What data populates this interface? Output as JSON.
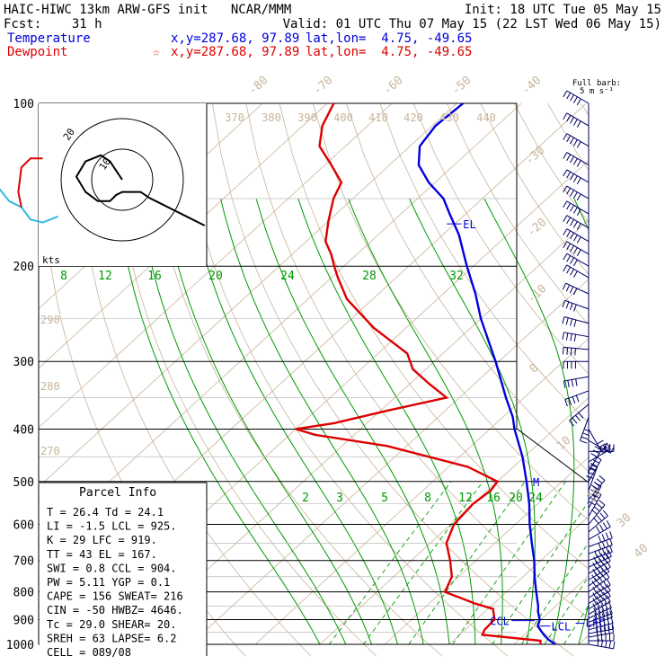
{
  "header": {
    "line1_left": "HAIC-HIWC 13km ARW-GFS init   NCAR/MMM",
    "line1_right": "Init: 18 UTC Tue 05 May 15",
    "line2_left": "Fcst:    31 h",
    "line2_right": "Valid: 01 UTC Thu 07 May 15 (22 LST Wed 06 May 15)",
    "temp_label": "Temperature",
    "temp_xy": "x,y=287.68, 97.89",
    "temp_latlon": "lat,lon=  4.75, -49.65",
    "dew_label": "Dewpoint",
    "dew_xy": "x,y=287.68, 97.89",
    "dew_latlon": "lat,lon=  4.75, -49.65",
    "star_glyph": "☆"
  },
  "colors": {
    "temperature": "#0000dd",
    "dewpoint": "#dd0000",
    "isotherm": "#c8b49a",
    "mixing_ratio": "#009900",
    "theta_label": "#c8b49a",
    "barb": "#000066",
    "hodo_cyan": "#33bbdd"
  },
  "barb_header": {
    "line1": "Full barb:",
    "line2": "5 m s⁻¹"
  },
  "parcel_info": {
    "title": "Parcel Info",
    "rows": [
      "T  =  26.4  Td =  24.1",
      "LI =  -1.5  LCL =  925.",
      "K  =    29  LFC =  919.",
      "TT =    43  EL  =  167.",
      "SWI =   0.8  CCL =  904.",
      "PW =  5.11  YGP =   0.1",
      "CAPE =  156  SWEAT= 216",
      "CIN =   -50  HWBZ= 4646.",
      "Tc =  29.0  SHEAR=  20.",
      "SREH =   63  LAPSE=  6.2",
      "CELL = 089/08"
    ]
  },
  "chart_data": {
    "type": "line",
    "chart_kind": "skew-T log-p sounding",
    "y_axis": {
      "label": "",
      "unit": "hPa",
      "log_scale": true,
      "range": [
        1000,
        100
      ],
      "ticks": [
        "100",
        "200",
        "300",
        "400",
        "500",
        "600",
        "700",
        "800",
        "900",
        "1000"
      ]
    },
    "isotherm_labels": [
      "-80",
      "-70",
      "-60",
      "-50",
      "-40",
      "-30",
      "-20",
      "-10",
      "0",
      "10",
      "20",
      "30",
      "40"
    ],
    "theta_e_labels": [
      "370",
      "380",
      "390",
      "400",
      "410",
      "420",
      "430",
      "440"
    ],
    "theta_side_labels": [
      "290",
      "280",
      "270"
    ],
    "mixing_ratio_labels_top": [
      "8",
      "12",
      "16",
      "20",
      "24",
      "28",
      "32"
    ],
    "mixing_ratio_labels_mid": [
      "2",
      "3",
      "5",
      "8",
      "12",
      "16",
      "20",
      "24"
    ],
    "annotations": {
      "el": "EL",
      "m": "M",
      "ccl": "CCL",
      "lcl": "LCL",
      "lfc": "LFC"
    },
    "series": [
      {
        "name": "Temperature",
        "points": [
          [
            1000,
            26.4
          ],
          [
            980,
            24.5
          ],
          [
            960,
            23.0
          ],
          [
            940,
            21.6
          ],
          [
            925,
            20.6
          ],
          [
            900,
            19.8
          ],
          [
            870,
            18.2
          ],
          [
            850,
            17.3
          ],
          [
            800,
            14.6
          ],
          [
            750,
            11.8
          ],
          [
            700,
            9.0
          ],
          [
            650,
            5.7
          ],
          [
            600,
            2.2
          ],
          [
            550,
            -1.3
          ],
          [
            500,
            -5.5
          ],
          [
            450,
            -10.3
          ],
          [
            400,
            -16.2
          ],
          [
            380,
            -18.5
          ],
          [
            350,
            -22.8
          ],
          [
            300,
            -30.5
          ],
          [
            250,
            -40.0
          ],
          [
            225,
            -45.0
          ],
          [
            200,
            -51.0
          ],
          [
            175,
            -57.5
          ],
          [
            160,
            -62.5
          ],
          [
            150,
            -66.0
          ],
          [
            140,
            -71.0
          ],
          [
            130,
            -75.5
          ],
          [
            120,
            -78.5
          ],
          [
            110,
            -79.5
          ],
          [
            100,
            -79.0
          ]
        ]
      },
      {
        "name": "Dewpoint",
        "points": [
          [
            1000,
            24.1
          ],
          [
            985,
            23.5
          ],
          [
            960,
            13.5
          ],
          [
            940,
            13.0
          ],
          [
            900,
            12.8
          ],
          [
            860,
            10.8
          ],
          [
            840,
            7.0
          ],
          [
            800,
            0.5
          ],
          [
            750,
            -1.0
          ],
          [
            700,
            -4.0
          ],
          [
            650,
            -7.5
          ],
          [
            600,
            -9.5
          ],
          [
            550,
            -10.0
          ],
          [
            520,
            -9.5
          ],
          [
            500,
            -10.0
          ],
          [
            470,
            -17.0
          ],
          [
            430,
            -33.0
          ],
          [
            410,
            -46.0
          ],
          [
            400,
            -50.0
          ],
          [
            390,
            -45.0
          ],
          [
            370,
            -39.0
          ],
          [
            350,
            -32.0
          ],
          [
            330,
            -37.0
          ],
          [
            310,
            -42.0
          ],
          [
            290,
            -45.5
          ],
          [
            260,
            -55.0
          ],
          [
            230,
            -64.0
          ],
          [
            210,
            -69.0
          ],
          [
            200,
            -71.5
          ],
          [
            190,
            -74.0
          ],
          [
            180,
            -77.0
          ],
          [
            165,
            -80.0
          ],
          [
            150,
            -83.0
          ],
          [
            140,
            -84.5
          ],
          [
            130,
            -89.0
          ],
          [
            120,
            -94.0
          ],
          [
            110,
            -97.0
          ],
          [
            100,
            -99.0
          ]
        ]
      }
    ],
    "hodograph": {
      "speed_labels": [
        "10",
        "20"
      ],
      "unit_label": "kts",
      "black_path": [
        [
          0,
          0
        ],
        [
          -2,
          -3
        ],
        [
          -4,
          -6
        ],
        [
          -7,
          -8
        ],
        [
          -12,
          -6
        ],
        [
          -15,
          -1
        ],
        [
          -12,
          4
        ],
        [
          -8,
          7
        ],
        [
          -4,
          7
        ],
        [
          -2,
          5
        ],
        [
          0,
          4
        ],
        [
          2,
          4
        ],
        [
          4,
          4
        ],
        [
          6,
          4
        ],
        [
          9,
          6
        ],
        [
          13,
          8
        ],
        [
          17,
          10
        ],
        [
          21,
          12
        ],
        [
          25,
          14
        ],
        [
          27,
          15
        ]
      ],
      "cyan_path": [
        [
          -21,
          12
        ],
        [
          -26,
          14
        ],
        [
          -30,
          13
        ],
        [
          -33,
          9
        ],
        [
          -37,
          7
        ],
        [
          -41,
          2
        ]
      ],
      "red_path": [
        [
          -33,
          9
        ],
        [
          -34,
          4
        ],
        [
          -33,
          -4
        ],
        [
          -30,
          -7
        ],
        [
          -26,
          -7
        ]
      ]
    },
    "wind_barbs": [
      {
        "p": 1000,
        "dir": 100,
        "spd": 7
      },
      {
        "p": 985,
        "dir": 90,
        "spd": 8
      },
      {
        "p": 970,
        "dir": 80,
        "spd": 9
      },
      {
        "p": 955,
        "dir": 80,
        "spd": 9
      },
      {
        "p": 940,
        "dir": 75,
        "spd": 8
      },
      {
        "p": 925,
        "dir": 70,
        "spd": 8
      },
      {
        "p": 910,
        "dir": 70,
        "spd": 7
      },
      {
        "p": 895,
        "dir": 65,
        "spd": 7
      },
      {
        "p": 880,
        "dir": 60,
        "spd": 6
      },
      {
        "p": 860,
        "dir": 60,
        "spd": 6
      },
      {
        "p": 840,
        "dir": 60,
        "spd": 5
      },
      {
        "p": 820,
        "dir": 60,
        "spd": 5
      },
      {
        "p": 800,
        "dir": 55,
        "spd": 5
      },
      {
        "p": 780,
        "dir": 55,
        "spd": 5
      },
      {
        "p": 760,
        "dir": 60,
        "spd": 5
      },
      {
        "p": 740,
        "dir": 60,
        "spd": 5
      },
      {
        "p": 720,
        "dir": 65,
        "spd": 5
      },
      {
        "p": 700,
        "dir": 70,
        "spd": 5
      },
      {
        "p": 680,
        "dir": 70,
        "spd": 4
      },
      {
        "p": 660,
        "dir": 70,
        "spd": 4
      },
      {
        "p": 640,
        "dir": 60,
        "spd": 4
      },
      {
        "p": 620,
        "dir": 50,
        "spd": 4
      },
      {
        "p": 600,
        "dir": 40,
        "spd": 4
      },
      {
        "p": 580,
        "dir": 30,
        "spd": 4
      },
      {
        "p": 560,
        "dir": 30,
        "spd": 4
      },
      {
        "p": 540,
        "dir": 40,
        "spd": 4
      },
      {
        "p": 520,
        "dir": 20,
        "spd": 4
      },
      {
        "p": 500,
        "dir": 30,
        "spd": 4
      },
      {
        "p": 480,
        "dir": 30,
        "spd": 3
      },
      {
        "p": 460,
        "dir": 60,
        "spd": 3
      },
      {
        "p": 440,
        "dir": 90,
        "spd": 3
      },
      {
        "p": 420,
        "dir": 120,
        "spd": 3
      },
      {
        "p": 400,
        "dir": 150,
        "spd": 3
      },
      {
        "p": 380,
        "dir": 200,
        "spd": 4
      },
      {
        "p": 360,
        "dir": 230,
        "spd": 4
      },
      {
        "p": 340,
        "dir": 250,
        "spd": 4
      },
      {
        "p": 320,
        "dir": 260,
        "spd": 4
      },
      {
        "p": 300,
        "dir": 270,
        "spd": 4
      },
      {
        "p": 285,
        "dir": 275,
        "spd": 4
      },
      {
        "p": 270,
        "dir": 280,
        "spd": 4
      },
      {
        "p": 255,
        "dir": 285,
        "spd": 4
      },
      {
        "p": 240,
        "dir": 290,
        "spd": 4
      },
      {
        "p": 225,
        "dir": 295,
        "spd": 4
      },
      {
        "p": 210,
        "dir": 300,
        "spd": 4
      },
      {
        "p": 200,
        "dir": 300,
        "spd": 4
      },
      {
        "p": 190,
        "dir": 300,
        "spd": 5
      },
      {
        "p": 180,
        "dir": 300,
        "spd": 5
      },
      {
        "p": 170,
        "dir": 300,
        "spd": 5
      },
      {
        "p": 160,
        "dir": 300,
        "spd": 5
      },
      {
        "p": 150,
        "dir": 300,
        "spd": 5
      },
      {
        "p": 140,
        "dir": 300,
        "spd": 5
      },
      {
        "p": 130,
        "dir": 300,
        "spd": 5
      },
      {
        "p": 120,
        "dir": 300,
        "spd": 5
      },
      {
        "p": 110,
        "dir": 300,
        "spd": 5
      },
      {
        "p": 100,
        "dir": 300,
        "spd": 5
      }
    ]
  }
}
